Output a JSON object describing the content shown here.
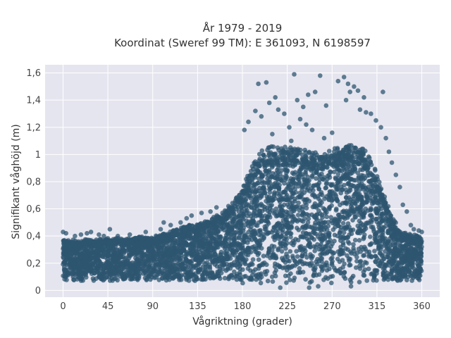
{
  "chart_data": {
    "type": "scatter",
    "title_line1": "År 1979 - 2019",
    "title_line2": "Koordinat (Sweref 99 TM): E 361093, N 6198597",
    "xlabel": "Vågriktning (grader)",
    "ylabel": "Signifikant våghöjd (m)",
    "xlim": [
      -18,
      378
    ],
    "ylim": [
      -0.05,
      1.66
    ],
    "x_ticks": [
      0,
      45,
      90,
      135,
      180,
      225,
      270,
      315,
      360
    ],
    "x_tick_labels": [
      "0",
      "45",
      "90",
      "135",
      "180",
      "225",
      "270",
      "315",
      "360"
    ],
    "y_ticks": [
      0,
      0.2,
      0.4,
      0.6,
      0.8,
      1.0,
      1.2,
      1.4,
      1.6
    ],
    "y_tick_labels": [
      "0",
      "0,2",
      "0,4",
      "0,6",
      "0,8",
      "1",
      "1,2",
      "1,4",
      "1,6"
    ],
    "grid": true,
    "marker_color": "#2e5570",
    "plot_background": "#e5e5ef",
    "envelope": {
      "direction": [
        0,
        15,
        30,
        45,
        60,
        75,
        90,
        105,
        120,
        135,
        150,
        160,
        170,
        180,
        190,
        200,
        210,
        225,
        240,
        255,
        270,
        280,
        290,
        300,
        310,
        320,
        330,
        340,
        350,
        360
      ],
      "min_height": [
        0.07,
        0.07,
        0.07,
        0.07,
        0.07,
        0.07,
        0.07,
        0.07,
        0.07,
        0.07,
        0.07,
        0.07,
        0.06,
        0.05,
        0.05,
        0.05,
        0.05,
        0.05,
        0.05,
        0.05,
        0.05,
        0.05,
        0.05,
        0.05,
        0.05,
        0.05,
        0.06,
        0.07,
        0.07,
        0.07
      ],
      "max_height": [
        0.36,
        0.36,
        0.36,
        0.37,
        0.37,
        0.38,
        0.38,
        0.41,
        0.45,
        0.48,
        0.52,
        0.55,
        0.62,
        0.72,
        0.9,
        1.0,
        1.02,
        1.02,
        1.0,
        0.98,
        1.0,
        1.03,
        1.03,
        1.02,
        0.92,
        0.72,
        0.52,
        0.42,
        0.4,
        0.38
      ]
    },
    "outliers": [
      [
        196,
        1.52
      ],
      [
        204,
        1.53
      ],
      [
        213,
        1.42
      ],
      [
        207,
        1.38
      ],
      [
        222,
        1.3
      ],
      [
        216,
        1.33
      ],
      [
        235,
        1.4
      ],
      [
        241,
        1.35
      ],
      [
        246,
        1.44
      ],
      [
        253,
        1.46
      ],
      [
        258,
        1.58
      ],
      [
        232,
        1.59
      ],
      [
        264,
        1.36
      ],
      [
        276,
        1.54
      ],
      [
        282,
        1.57
      ],
      [
        286,
        1.52
      ],
      [
        292,
        1.5
      ],
      [
        288,
        1.46
      ],
      [
        296,
        1.47
      ],
      [
        302,
        1.42
      ],
      [
        284,
        1.4
      ],
      [
        298,
        1.33
      ],
      [
        304,
        1.31
      ],
      [
        309,
        1.3
      ],
      [
        314,
        1.25
      ],
      [
        321,
        1.46
      ],
      [
        319,
        1.2
      ],
      [
        324,
        1.12
      ],
      [
        238,
        1.26
      ],
      [
        244,
        1.22
      ],
      [
        227,
        1.2
      ],
      [
        199,
        1.28
      ],
      [
        193,
        1.32
      ],
      [
        186,
        1.24
      ],
      [
        182,
        1.18
      ],
      [
        210,
        1.15
      ],
      [
        250,
        1.18
      ],
      [
        270,
        1.16
      ],
      [
        262,
        1.12
      ],
      [
        229,
        1.1
      ],
      [
        327,
        1.02
      ],
      [
        330,
        0.94
      ],
      [
        334,
        0.85
      ],
      [
        338,
        0.76
      ],
      [
        341,
        0.63
      ],
      [
        345,
        0.58
      ],
      [
        349,
        0.48
      ],
      [
        352,
        0.45
      ],
      [
        357,
        0.44
      ],
      [
        360,
        0.43
      ],
      [
        0,
        0.43
      ],
      [
        3,
        0.42
      ],
      [
        12,
        0.4
      ],
      [
        18,
        0.41
      ],
      [
        24,
        0.42
      ],
      [
        28,
        0.43
      ],
      [
        36,
        0.41
      ],
      [
        41,
        0.4
      ],
      [
        47,
        0.45
      ],
      [
        55,
        0.4
      ],
      [
        67,
        0.41
      ],
      [
        76,
        0.39
      ],
      [
        83,
        0.43
      ],
      [
        98,
        0.45
      ],
      [
        101,
        0.5
      ],
      [
        108,
        0.48
      ],
      [
        118,
        0.5
      ],
      [
        124,
        0.53
      ],
      [
        129,
        0.55
      ],
      [
        139,
        0.57
      ],
      [
        148,
        0.58
      ],
      [
        154,
        0.61
      ],
      [
        160,
        0.57
      ],
      [
        166,
        0.62
      ],
      [
        173,
        0.66
      ],
      [
        177,
        0.7
      ],
      [
        218,
        0.02
      ],
      [
        247,
        0.02
      ],
      [
        256,
        0.03
      ],
      [
        289,
        0.03
      ]
    ]
  }
}
